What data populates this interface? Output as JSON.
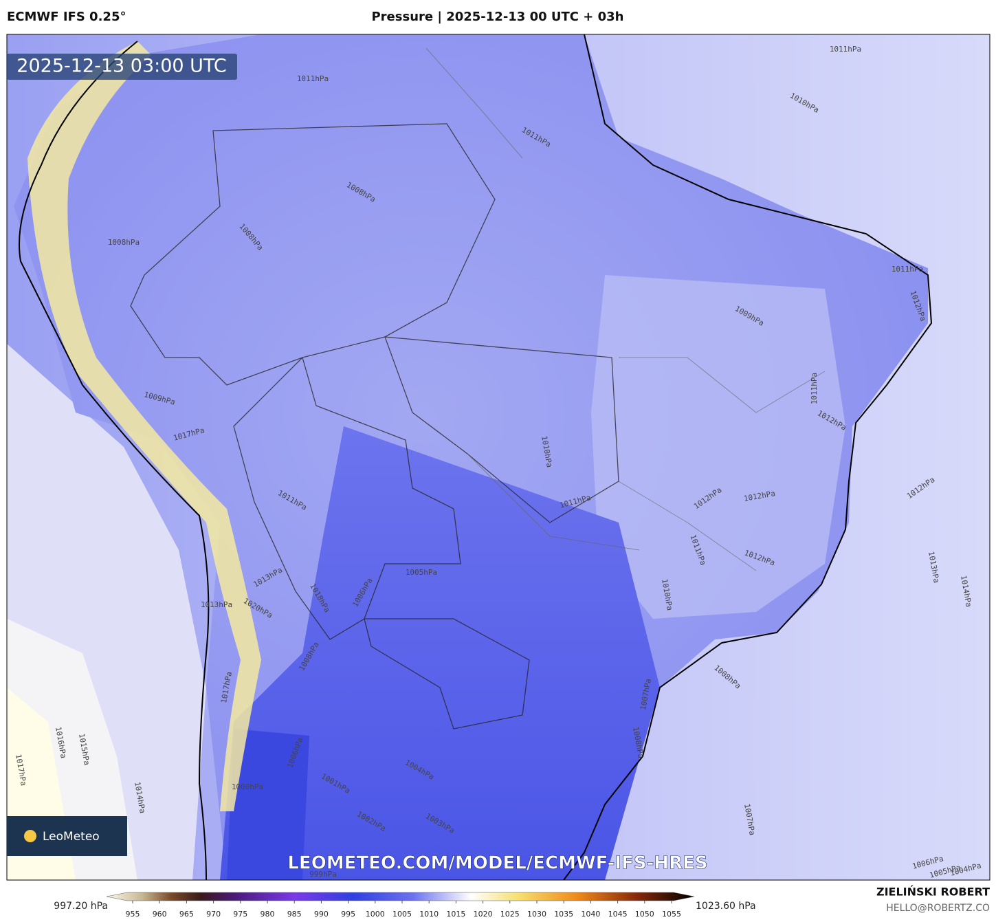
{
  "header": {
    "model": "ECMWF IFS 0.25°",
    "title": "Pressure | 2025-12-13 00 UTC + 03h"
  },
  "map": {
    "timestamp": "2025-12-13 03:00 UTC",
    "watermark": "LEOMETEO.COM/MODEL/ECMWF-IFS-HRES",
    "logo": "LeoMeteo",
    "contour_labels": [
      "1011hPa",
      "1010hPa",
      "1011hPa",
      "1008hPa",
      "1008hPa",
      "1008hPa",
      "1011hPa",
      "1011hPa",
      "1012hPa",
      "1009hPa",
      "1011hPa",
      "1012hPa",
      "1010hPa",
      "1011hPa",
      "1012hPa",
      "1012hPa",
      "1012hPa",
      "1011hPa",
      "1012hPa",
      "1013hPa",
      "1014hPa",
      "1010hPa",
      "1005hPa",
      "1006hPa",
      "1008hPa",
      "1007hPa",
      "1008hPa",
      "1007hPa",
      "1006hPa",
      "1005hPa",
      "1004hPa",
      "1004hPa",
      "1003hPa",
      "1002hPa",
      "1001hPa",
      "1000hPa",
      "999hPa",
      "1014hPa",
      "1015hPa",
      "1016hPa",
      "1017hPa",
      "1009hPa",
      "1017hPa",
      "1011hPa",
      "1013hPa",
      "1013hPa",
      "1008hPa",
      "1006hPa",
      "1018hPa",
      "1020hPa",
      "1017hPa"
    ]
  },
  "colorbar": {
    "min_label": "997.20 hPa",
    "max_label": "1023.60 hPa",
    "ticks": [
      955,
      960,
      965,
      970,
      975,
      980,
      985,
      990,
      995,
      1000,
      1005,
      1010,
      1015,
      1020,
      1025,
      1030,
      1035,
      1040,
      1045,
      1050,
      1055
    ]
  },
  "footer": {
    "author": "ZIELIŃSKI ROBERT",
    "contact": "HELLO@ROBERTZ.CO"
  }
}
